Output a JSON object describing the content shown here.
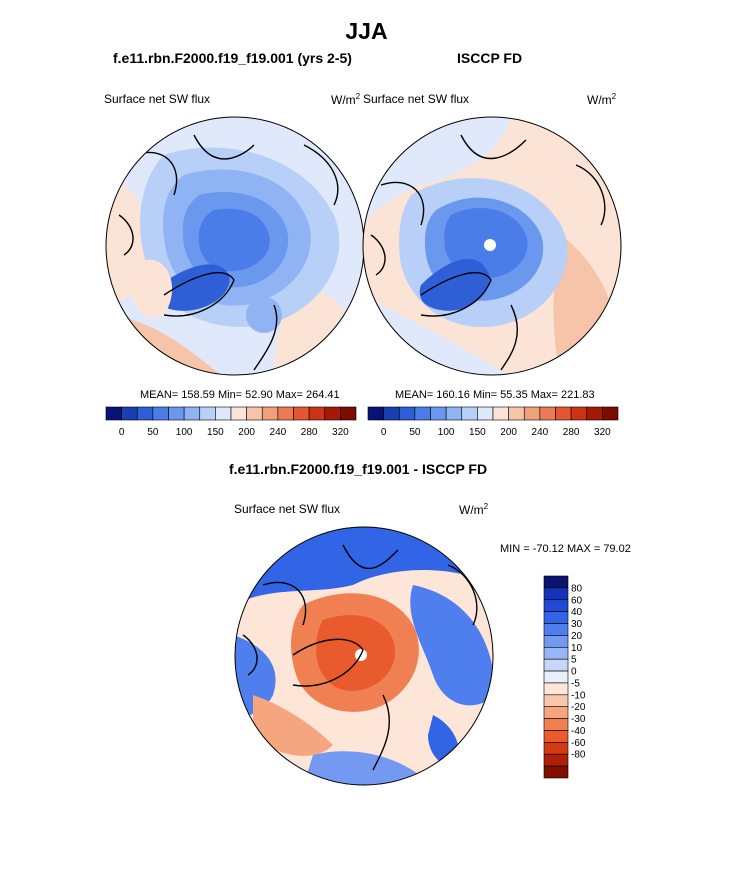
{
  "title": "JJA",
  "panels": {
    "model": {
      "case_name": "f.e11.rbn.F2000.f19_f19.001 (yrs 2-5)",
      "variable": "Surface net SW flux",
      "units": "W/m",
      "units_sup": "2",
      "stats": "MEAN= 158.59  Min=  52.90  Max= 264.41"
    },
    "obs": {
      "case_name": "ISCCP FD",
      "variable": "Surface net SW flux",
      "units": "W/m",
      "units_sup": "2",
      "stats": "MEAN= 160.16  Min=  55.35  Max= 221.83"
    },
    "diff": {
      "case_name": "f.e11.rbn.F2000.f19_f19.001 - ISCCP FD",
      "variable": "Surface net SW flux",
      "units": "W/m",
      "units_sup": "2",
      "stats": "MIN = -70.12 MAX =  79.02"
    }
  },
  "colorbars": {
    "top_colors": [
      "#08137a",
      "#1a3fb0",
      "#2e5fd6",
      "#4a7de8",
      "#6b98ef",
      "#90b3f3",
      "#b8cff7",
      "#dde8fb",
      "#fbe3d6",
      "#f6c4a8",
      "#f2a07c",
      "#ec7a52",
      "#e5552f",
      "#cf3315",
      "#a51a06",
      "#7a0c00"
    ],
    "top_labels": [
      "0",
      "50",
      "100",
      "150",
      "200",
      "240",
      "280",
      "320"
    ],
    "diff_colors": [
      "#0a1470",
      "#1533b8",
      "#1f4bd6",
      "#3264e6",
      "#4f7fee",
      "#7399f2",
      "#98b5f5",
      "#c6d7f9",
      "#e9f0fc",
      "#fde6d8",
      "#f9c7a9",
      "#f5a67e",
      "#f07f52",
      "#e95a2c",
      "#d23a12",
      "#ac2108",
      "#820e00"
    ],
    "diff_labels": [
      "80",
      "60",
      "40",
      "30",
      "20",
      "10",
      "5",
      "0",
      "-5",
      "-10",
      "-20",
      "-30",
      "-40",
      "-60",
      "-80"
    ]
  }
}
